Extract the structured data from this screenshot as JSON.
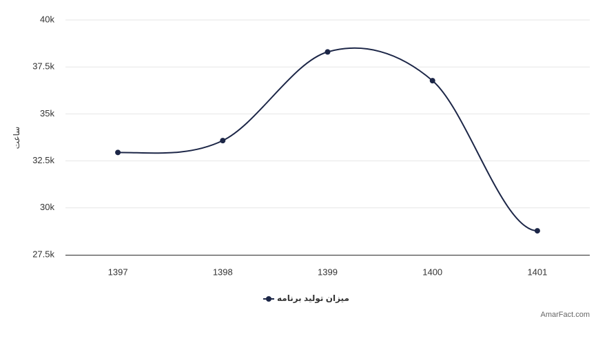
{
  "chart_data": {
    "type": "line",
    "y_axis_title": "ساعت",
    "categories": [
      "1397",
      "1398",
      "1399",
      "1400",
      "1401"
    ],
    "series": [
      {
        "name": "میزان تولید برنامه",
        "color": "#1c2647",
        "values": [
          32950,
          33580,
          38300,
          36770,
          28780
        ]
      }
    ],
    "ylim": [
      27500,
      40000
    ],
    "yticks": [
      {
        "value": 27500,
        "label": "27.5k"
      },
      {
        "value": 30000,
        "label": "30k"
      },
      {
        "value": 32500,
        "label": "32.5k"
      },
      {
        "value": 35000,
        "label": "35k"
      },
      {
        "value": 37500,
        "label": "37.5k"
      },
      {
        "value": 40000,
        "label": "40k"
      }
    ],
    "grid": true,
    "smooth": true,
    "credit": "AmarFact.com"
  }
}
